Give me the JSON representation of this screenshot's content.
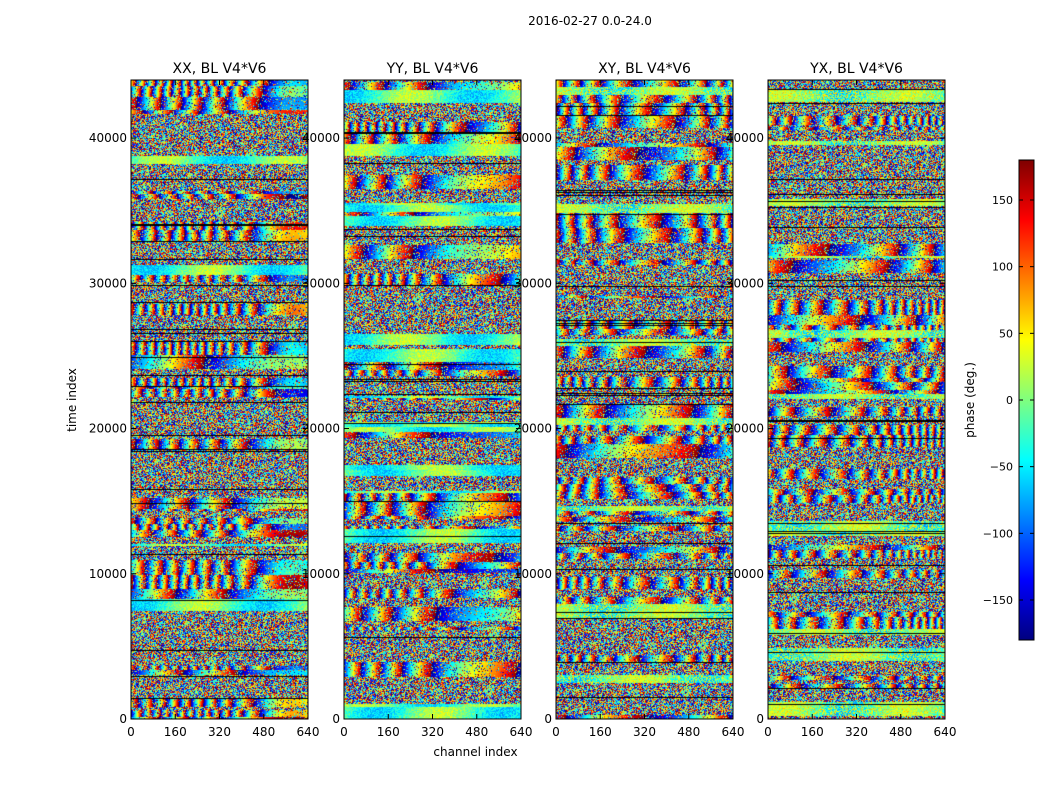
{
  "figure": {
    "suptitle": "2016-02-27 0.0-24.0",
    "xlabel": "channel index",
    "ylabel": "time index"
  },
  "colorbar": {
    "label": "phase (deg.)",
    "ticks": [
      "150",
      "100",
      "50",
      "0",
      "−50",
      "−100",
      "−150"
    ],
    "tick_values": [
      150,
      100,
      50,
      0,
      -50,
      -100,
      -150
    ],
    "range": [
      -180,
      180
    ],
    "colormap": "jet",
    "colors": [
      "#00007f",
      "#0000ff",
      "#007fff",
      "#00ffff",
      "#7fff7f",
      "#ffff00",
      "#ff7f00",
      "#ff0000",
      "#7f0000"
    ]
  },
  "chart_data": [
    {
      "type": "heatmap",
      "title": "XX, BL V4*V6",
      "xlabel": "",
      "ylabel": "time index",
      "xlim": [
        0,
        640
      ],
      "ylim": [
        0,
        44000
      ],
      "x_ticks": [
        "0",
        "160",
        "320",
        "480",
        "640"
      ],
      "x_tick_values": [
        0,
        160,
        320,
        480,
        640
      ],
      "y_ticks": [
        "0",
        "10000",
        "20000",
        "30000",
        "40000"
      ],
      "y_tick_values": [
        0,
        10000,
        20000,
        30000,
        40000
      ],
      "value_range": [
        -180,
        180
      ]
    },
    {
      "type": "heatmap",
      "title": "YY, BL V4*V6",
      "xlabel": "channel index",
      "ylabel": "",
      "xlim": [
        0,
        640
      ],
      "ylim": [
        0,
        44000
      ],
      "x_ticks": [
        "0",
        "160",
        "320",
        "480",
        "640"
      ],
      "x_tick_values": [
        0,
        160,
        320,
        480,
        640
      ],
      "y_ticks": [
        "0",
        "10000",
        "20000",
        "30000",
        "40000"
      ],
      "y_tick_values": [
        0,
        10000,
        20000,
        30000,
        40000
      ],
      "value_range": [
        -180,
        180
      ]
    },
    {
      "type": "heatmap",
      "title": "XY, BL V4*V6",
      "xlabel": "",
      "ylabel": "",
      "xlim": [
        0,
        640
      ],
      "ylim": [
        0,
        44000
      ],
      "x_ticks": [
        "0",
        "160",
        "320",
        "480",
        "640"
      ],
      "x_tick_values": [
        0,
        160,
        320,
        480,
        640
      ],
      "y_ticks": [
        "0",
        "10000",
        "20000",
        "30000",
        "40000"
      ],
      "y_tick_values": [
        0,
        10000,
        20000,
        30000,
        40000
      ],
      "value_range": [
        -180,
        180
      ]
    },
    {
      "type": "heatmap",
      "title": "YX, BL V4*V6",
      "xlabel": "",
      "ylabel": "",
      "xlim": [
        0,
        640
      ],
      "ylim": [
        0,
        44000
      ],
      "x_ticks": [
        "0",
        "160",
        "320",
        "480",
        "640"
      ],
      "x_tick_values": [
        0,
        160,
        320,
        480,
        640
      ],
      "y_ticks": [
        "0",
        "10000",
        "20000",
        "30000",
        "40000"
      ],
      "y_tick_values": [
        0,
        10000,
        20000,
        30000,
        40000
      ],
      "value_range": [
        -180,
        180
      ]
    }
  ]
}
